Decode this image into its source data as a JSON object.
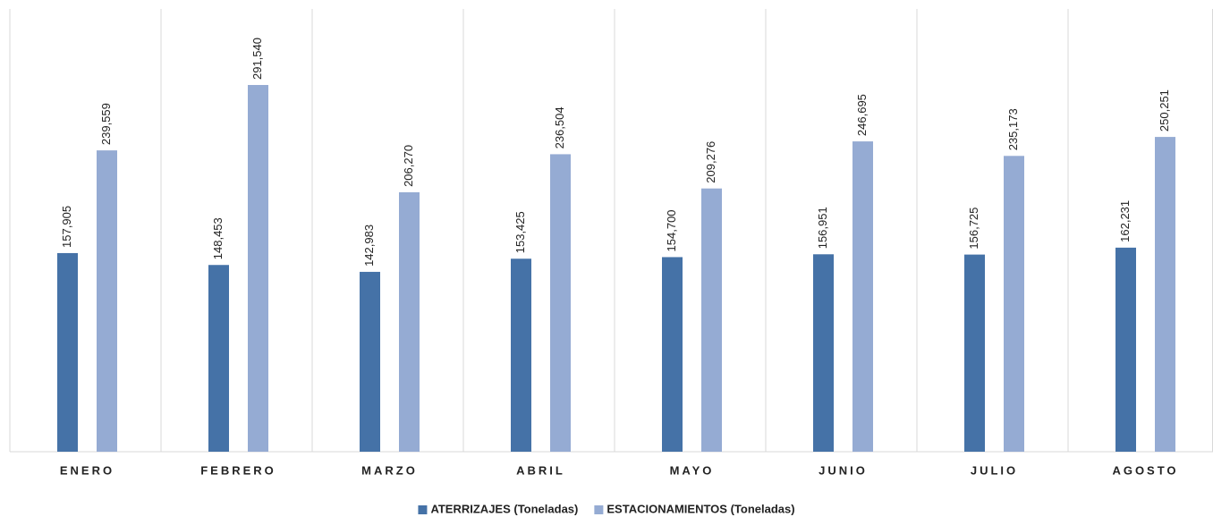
{
  "chart_data": {
    "type": "bar",
    "categories": [
      "ENERO",
      "FEBRERO",
      "MARZO",
      "ABRIL",
      "MAYO",
      "JUNIO",
      "JULIO",
      "AGOSTO"
    ],
    "series": [
      {
        "name": "ATERRIZAJES (Toneladas)",
        "color": "#4572a7",
        "values": [
          157905,
          148453,
          142983,
          153425,
          154700,
          156951,
          156725,
          162231
        ],
        "value_labels": [
          "157,905",
          "148,453",
          "142,983",
          "153,425",
          "154,700",
          "156,951",
          "156,725",
          "162,231"
        ]
      },
      {
        "name": "ESTACIONAMIENTOS (Toneladas)",
        "color": "#95abd3",
        "values": [
          239559,
          291540,
          206270,
          236504,
          209276,
          246695,
          235173,
          250251
        ],
        "value_labels": [
          "239,559",
          "291,540",
          "206,270",
          "236,504",
          "209,276",
          "246,695",
          "235,173",
          "250,251"
        ]
      }
    ],
    "ylim": [
      0,
      352000
    ],
    "legend": "bottom"
  }
}
